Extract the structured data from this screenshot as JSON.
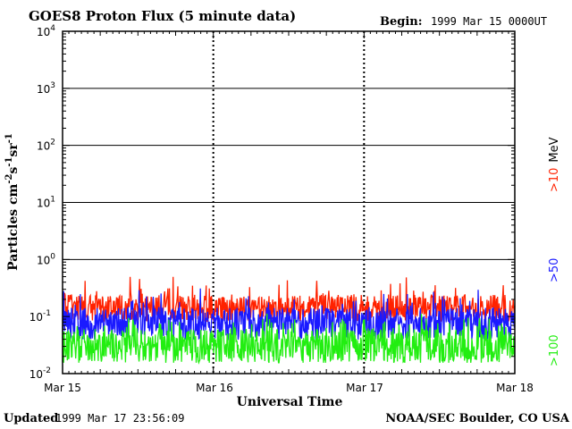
{
  "header": {
    "title": "GOES8 Proton Flux (5 minute data)",
    "begin_label": "Begin:",
    "begin_value": "1999 Mar 15 0000UT"
  },
  "footer": {
    "updated_label": "Updated",
    "updated_value": "1999 Mar 17 23:56:09",
    "credit": "NOAA/SEC Boulder, CO USA"
  },
  "chart_data": {
    "type": "line",
    "title": "GOES8 Proton Flux (5 minute data)",
    "xlabel": "Universal Time",
    "ylabel_parts": [
      "Particles cm",
      "-2",
      "s",
      "-1",
      "sr",
      "-1"
    ],
    "y_scale": "log",
    "ylim": [
      0.01,
      10000
    ],
    "y_ticks": [
      {
        "value": 0.01,
        "base": "10",
        "exp": "-2"
      },
      {
        "value": 0.1,
        "base": "10",
        "exp": "-1"
      },
      {
        "value": 1,
        "base": "10",
        "exp": "0"
      },
      {
        "value": 10,
        "base": "10",
        "exp": "1"
      },
      {
        "value": 100,
        "base": "10",
        "exp": "2"
      },
      {
        "value": 1000,
        "base": "10",
        "exp": "3"
      },
      {
        "value": 10000,
        "base": "10",
        "exp": "4"
      }
    ],
    "xlim": [
      "1999-03-15",
      "1999-03-18"
    ],
    "x_ticks": [
      "Mar 15",
      "Mar 16",
      "Mar 17",
      "Mar 18"
    ],
    "day_dividers": [
      "Mar 16",
      "Mar 17"
    ],
    "reference_lines_y": [
      1,
      10,
      100,
      1000
    ],
    "series": [
      {
        "name": ">10",
        "color": "#ff2200",
        "baseline": 0.14,
        "noise": 0.24,
        "spike_prob": 0.12,
        "spike_amp": 0.4,
        "samples": [
          "1999-03-15",
          "1999-03-16",
          "1999-03-17",
          "1999-03-18"
        ],
        "typical": [
          0.15,
          0.15,
          0.15,
          0.15
        ]
      },
      {
        "name": ">50",
        "color": "#1a1aff",
        "baseline": 0.075,
        "noise": 0.28,
        "spike_prob": 0.15,
        "spike_amp": 0.35,
        "samples": [
          "1999-03-15",
          "1999-03-16",
          "1999-03-17",
          "1999-03-18"
        ],
        "typical": [
          0.07,
          0.07,
          0.07,
          0.07
        ]
      },
      {
        "name": ">100",
        "color": "#22ee11",
        "baseline": 0.03,
        "noise": 0.3,
        "spike_prob": 0.2,
        "spike_amp": 0.35,
        "samples": [
          "1999-03-15",
          "1999-03-16",
          "1999-03-17",
          "1999-03-18"
        ],
        "typical": [
          0.03,
          0.03,
          0.03,
          0.03
        ]
      }
    ],
    "legend": [
      {
        "label": ">10",
        "unit": "MeV",
        "color": "#ff2200"
      },
      {
        "label": ">50",
        "unit": "",
        "color": "#1a1aff"
      },
      {
        "label": ">100",
        "unit": "",
        "color": "#22ee11"
      }
    ],
    "grid": false,
    "legend_position": "right, vertical"
  }
}
